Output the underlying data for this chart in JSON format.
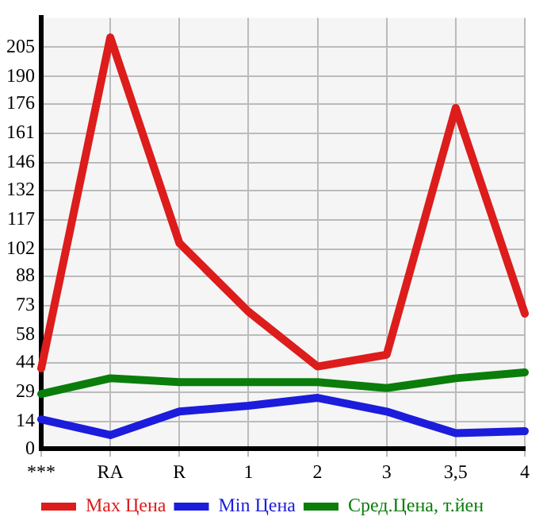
{
  "chart_data": {
    "type": "line",
    "categories": [
      "***",
      "RA",
      "R",
      "1",
      "2",
      "3",
      "3,5",
      "4"
    ],
    "series": [
      {
        "name": "Max Цена",
        "color": "#dd1c1c",
        "values": [
          41,
          210,
          105,
          70,
          42,
          48,
          174,
          69
        ]
      },
      {
        "name": "Min Цена",
        "color": "#1c1cdd",
        "values": [
          15,
          7,
          19,
          22,
          26,
          19,
          8,
          9
        ]
      },
      {
        "name": "Сред.Цена, т.йен",
        "color": "#0a7d0a",
        "values": [
          28,
          36,
          34,
          34,
          34,
          31,
          36,
          39
        ]
      }
    ],
    "ylim": [
      0,
      220
    ],
    "yticks": [
      0,
      14,
      29,
      44,
      58,
      73,
      88,
      102,
      117,
      132,
      146,
      161,
      176,
      190,
      205
    ],
    "grid": true,
    "legend": "bottom"
  }
}
